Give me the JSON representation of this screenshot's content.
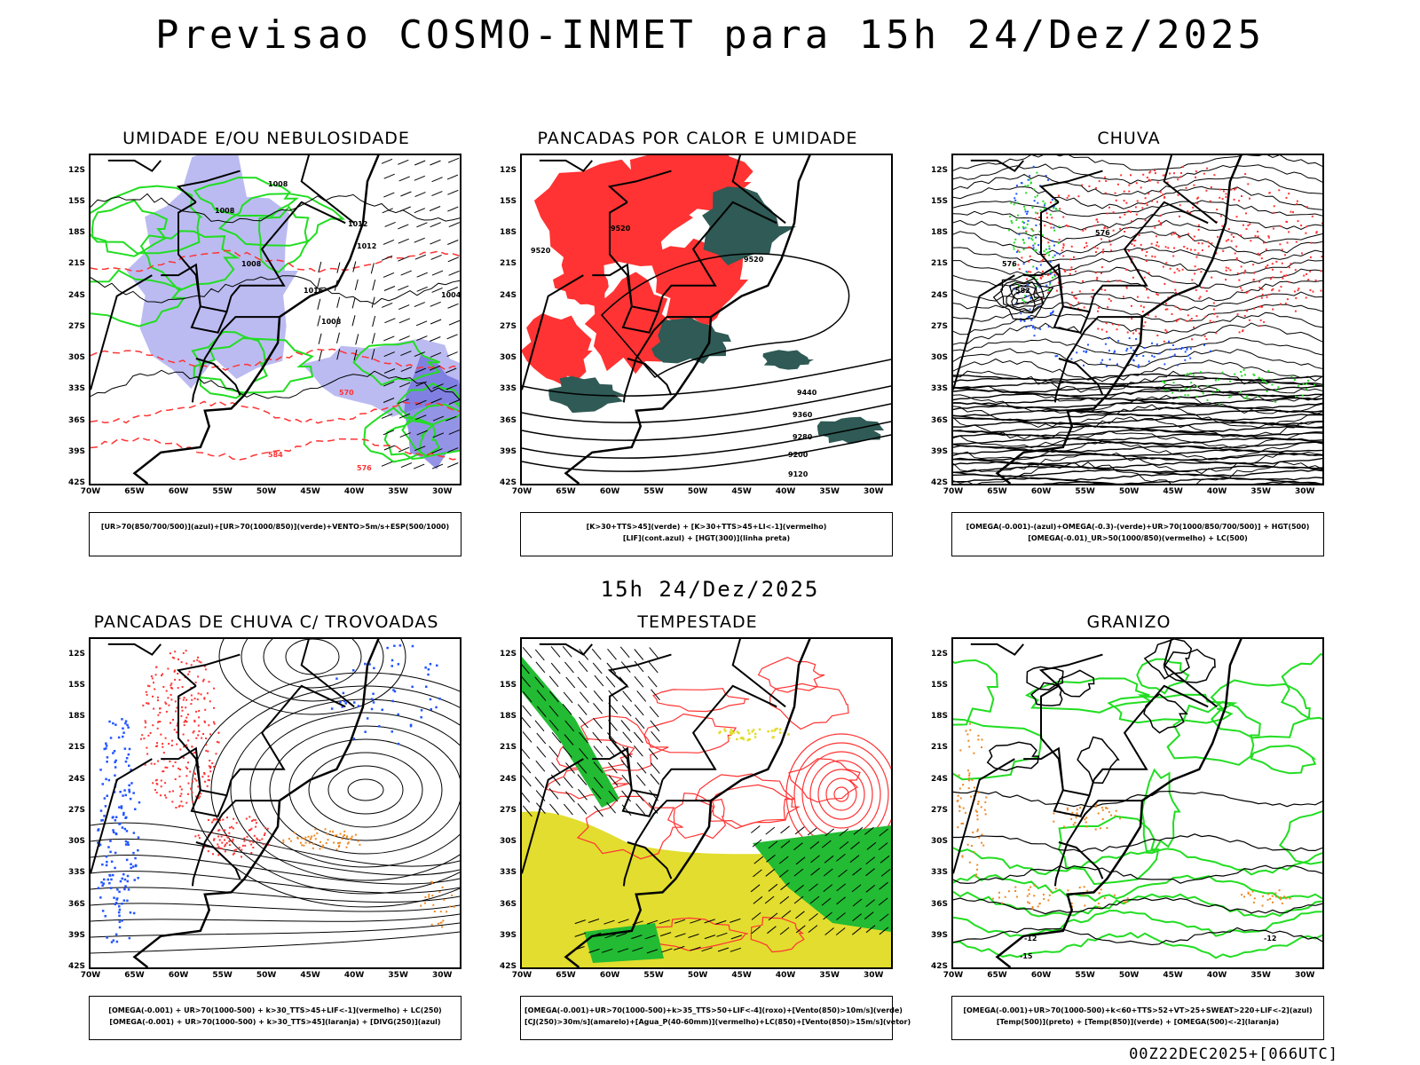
{
  "header": {
    "title": "Previsao COSMO-INMET  para 15h 24/Dez/2025"
  },
  "mid_date": "15h 24/Dez/2025",
  "footer_code": "00Z22DEC2025+[066UTC]",
  "axes": {
    "lat_labels": [
      "12S",
      "15S",
      "18S",
      "21S",
      "24S",
      "27S",
      "30S",
      "33S",
      "36S",
      "39S",
      "42S"
    ],
    "lon_labels": [
      "70W",
      "65W",
      "60W",
      "55W",
      "50W",
      "45W",
      "40W",
      "35W",
      "30W"
    ]
  },
  "colors": {
    "green": "#22dd22",
    "red": "#ff3333",
    "blue": "#2255ff",
    "lavender": "#aaaaee",
    "darkgreen": "#2f5a55",
    "yellow": "#e2dd2e",
    "orange": "#ee8822",
    "black": "#000000"
  },
  "panels": [
    {
      "title": "UMIDADE E/OU NEBULOSIDADE",
      "legend": [
        "[UR>70(850/700/500)](azul)+[UR>70(1000/850)](verde)+VENTO>5m/s+ESP(500/1000)"
      ],
      "contour_labels": [
        "1008",
        "1008",
        "1012",
        "1012",
        "1008",
        "1016",
        "1008",
        "1004",
        "584",
        "576",
        "570"
      ]
    },
    {
      "title": "PANCADAS POR CALOR E UMIDADE",
      "legend": [
        "[K>30+TTS>45](verde) + [K>30+TTS>45+LI<-1](vermelho)",
        "[LIF](cont.azul) + [HGT(300)](linha preta)"
      ],
      "contour_labels": [
        "9520",
        "9520",
        "9520",
        "9440",
        "9360",
        "9280",
        "9200",
        "9120"
      ]
    },
    {
      "title": "CHUVA",
      "legend": [
        "[OMEGA(-0.001)-(azul)+OMEGA(-0.3)-(verde)+UR>70(1000/850/700/500)] + HGT(500)",
        "[OMEGA(-0.01)_UR>50(1000/850)(vermelho) + LC(500)"
      ],
      "contour_labels": [
        "576",
        "576",
        "582"
      ]
    },
    {
      "title": "PANCADAS DE CHUVA C/ TROVOADAS",
      "legend": [
        "[OMEGA(-0.001) + UR>70(1000-500) + k>30_TTS>45+LIF<-1](vermelho) + LC(250)",
        "[OMEGA(-0.001) + UR>70(1000-500) + k>30_TTS>45](laranja) + [DIVG(250)](azul)"
      ],
      "contour_labels": []
    },
    {
      "title": "TEMPESTADE",
      "legend": [
        "[OMEGA(-0.001)+UR>70(1000-500)+k>35_TTS>50+LIF<-4](roxo)+[Vento(850)>10m/s](verde)",
        "[CJ(250)>30m/s](amarelo)+[Agua_P(40-60mm)](vermelho)+LC(850)+[Vento(850)>15m/s](vetor)"
      ],
      "contour_labels": []
    },
    {
      "title": "GRANIZO",
      "legend": [
        "[OMEGA(-0.001)+UR>70(1000-500)+k<60+TTS>52+VT>25+SWEAT>220+LIF<-2](azul)",
        "[Temp(500)](preto) + [Temp(850)](verde) + [OMEGA(500)<-2](laranja)"
      ],
      "contour_labels": [
        "-12",
        "-15",
        "-12"
      ]
    }
  ]
}
